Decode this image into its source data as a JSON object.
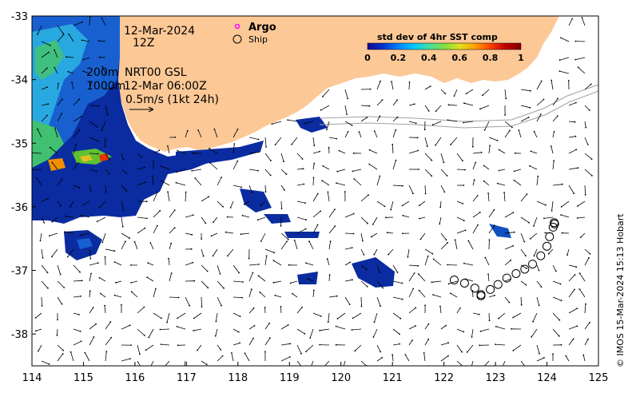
{
  "map": {
    "date_label": "12-Mar-2024",
    "time_label": "12Z",
    "depth_label_1": "200m",
    "depth_label_2": "1000m",
    "product_label": "NRT00 GSL",
    "product_time": "12-Mar 06:00Z",
    "scale_label": "0.5m/s (1kt 24h)",
    "credit": "© IMOS 15-Mar-2024 15:13 Hobart",
    "land_color": "#fcc896",
    "x_ticks": [
      "114",
      "115",
      "116",
      "117",
      "118",
      "119",
      "120",
      "121",
      "122",
      "123",
      "124",
      "125"
    ],
    "y_ticks": [
      "-33",
      "-34",
      "-35",
      "-36",
      "-37",
      "-38"
    ],
    "x_range": [
      114,
      125
    ],
    "y_range": [
      -33,
      -38.5
    ]
  },
  "legend": {
    "argo_label": "Argo",
    "ship_label": "Ship",
    "argo_color": "#ff00ff",
    "colorbar_title": "std dev of 4hr SST comp",
    "colorbar_ticks": [
      "0",
      "0.2",
      "0.4",
      "0.6",
      "0.8",
      "1"
    ],
    "colorbar_colors": [
      "#1a0a8c",
      "#0033cc",
      "#0080ff",
      "#00c8ff",
      "#40e0a0",
      "#80e040",
      "#e0e020",
      "#ffa000",
      "#ff4000",
      "#c00000",
      "#800000"
    ]
  },
  "ship_track": [
    {
      "lon": 122.2,
      "lat": -37.15
    },
    {
      "lon": 122.4,
      "lat": -37.2
    },
    {
      "lon": 122.6,
      "lat": -37.28
    },
    {
      "lon": 122.72,
      "lat": -37.38
    },
    {
      "lon": 122.72,
      "lat": -37.4
    },
    {
      "lon": 122.9,
      "lat": -37.3
    },
    {
      "lon": 123.05,
      "lat": -37.22
    },
    {
      "lon": 123.22,
      "lat": -37.12
    },
    {
      "lon": 123.4,
      "lat": -37.05
    },
    {
      "lon": 123.57,
      "lat": -36.98
    },
    {
      "lon": 123.72,
      "lat": -36.9
    },
    {
      "lon": 123.88,
      "lat": -36.77
    },
    {
      "lon": 124.0,
      "lat": -36.62
    },
    {
      "lon": 124.05,
      "lat": -36.47
    },
    {
      "lon": 124.12,
      "lat": -36.32
    },
    {
      "lon": 124.15,
      "lat": -36.27
    },
    {
      "lon": 124.14,
      "lat": -36.25
    }
  ]
}
